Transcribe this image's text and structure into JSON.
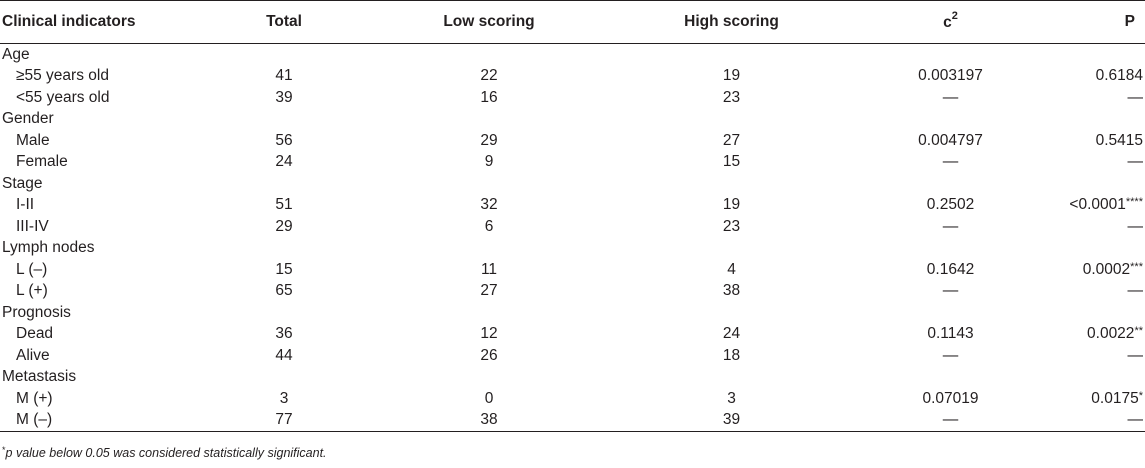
{
  "headers": {
    "clinical": "Clinical indicators",
    "total": "Total",
    "low": "Low scoring",
    "high": "High scoring",
    "chi_base": "c",
    "chi_sup": "2",
    "p": "P"
  },
  "groups": [
    {
      "label": "Age",
      "rows": [
        {
          "label": "≥55 years old",
          "total": "41",
          "low": "22",
          "high": "19",
          "chi": "0.003197",
          "p": "0.6184",
          "stars": ""
        },
        {
          "label": "<55 years old",
          "total": "39",
          "low": "16",
          "high": "23",
          "chi": "—",
          "p": "—",
          "stars": ""
        }
      ]
    },
    {
      "label": "Gender",
      "rows": [
        {
          "label": "Male",
          "total": "56",
          "low": "29",
          "high": "27",
          "chi": "0.004797",
          "p": "0.5415",
          "stars": ""
        },
        {
          "label": "Female",
          "total": "24",
          "low": "9",
          "high": "15",
          "chi": "—",
          "p": "—",
          "stars": ""
        }
      ]
    },
    {
      "label": "Stage",
      "rows": [
        {
          "label": "I-II",
          "total": "51",
          "low": "32",
          "high": "19",
          "chi": "0.2502",
          "p": "<0.0001",
          "stars": "****"
        },
        {
          "label": "III-IV",
          "total": "29",
          "low": "6",
          "high": "23",
          "chi": "—",
          "p": "—",
          "stars": ""
        }
      ]
    },
    {
      "label": "Lymph nodes",
      "rows": [
        {
          "label": "L (–)",
          "total": "15",
          "low": "11",
          "high": "4",
          "chi": "0.1642",
          "p": "0.0002",
          "stars": "***"
        },
        {
          "label": "L (+)",
          "total": "65",
          "low": "27",
          "high": "38",
          "chi": "—",
          "p": "—",
          "stars": ""
        }
      ]
    },
    {
      "label": "Prognosis",
      "rows": [
        {
          "label": "Dead",
          "total": "36",
          "low": "12",
          "high": "24",
          "chi": "0.1143",
          "p": "0.0022",
          "stars": "**"
        },
        {
          "label": "Alive",
          "total": "44",
          "low": "26",
          "high": "18",
          "chi": "—",
          "p": "—",
          "stars": ""
        }
      ]
    },
    {
      "label": "Metastasis",
      "rows": [
        {
          "label": "M (+)",
          "total": "3",
          "low": "0",
          "high": "3",
          "chi": "0.07019",
          "p": "0.0175",
          "stars": "*"
        },
        {
          "label": "M (–)",
          "total": "77",
          "low": "38",
          "high": "39",
          "chi": "—",
          "p": "—",
          "stars": ""
        }
      ]
    }
  ],
  "footnote": {
    "marker": "*",
    "text": "p value below 0.05 was considered statistically significant."
  }
}
